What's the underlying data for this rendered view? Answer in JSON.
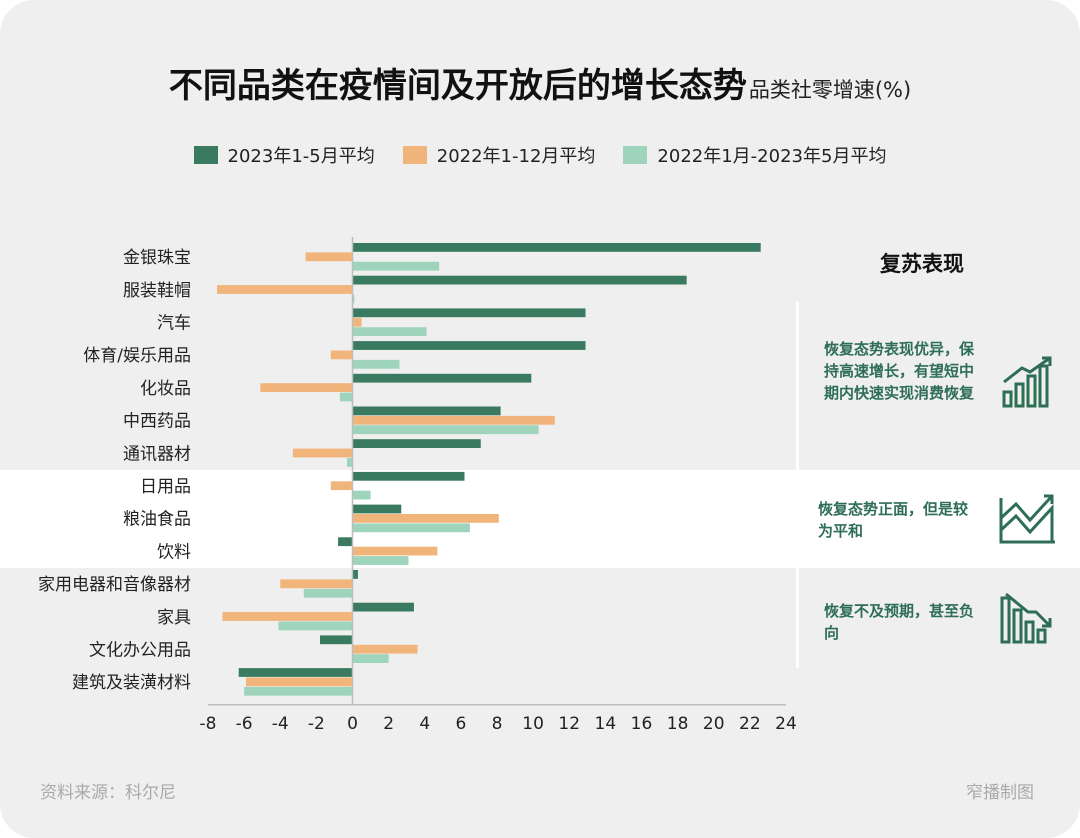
{
  "title": "不同品类在疫情间及开放后的增长态势",
  "subtitle": "品类社零增速(%)",
  "colors": {
    "series1": "#3a7a60",
    "series2": "#f1b57b",
    "series3": "#9ed4bc",
    "accent_text": "#2e6e56"
  },
  "chart_data": {
    "type": "bar",
    "orientation": "horizontal",
    "title": "不同品类在疫情间及开放后的增长态势",
    "subtitle": "品类社零增速(%)",
    "categories": [
      "金银珠宝",
      "服装鞋帽",
      "汽车",
      "体育/娱乐用品",
      "化妆品",
      "中西药品",
      "通讯器材",
      "日用品",
      "粮油食品",
      "饮料",
      "家用电器和音像器材",
      "家具",
      "文化办公用品",
      "建筑及装潢材料"
    ],
    "series": [
      {
        "name": "2023年1-5月平均",
        "values": [
          22.6,
          18.5,
          12.9,
          12.9,
          9.9,
          8.2,
          7.1,
          6.2,
          2.7,
          -0.8,
          0.3,
          3.4,
          -1.8,
          -6.3
        ]
      },
      {
        "name": "2022年1-12月平均",
        "values": [
          -2.6,
          -7.5,
          0.5,
          -1.2,
          -5.1,
          11.2,
          -3.3,
          -1.2,
          8.1,
          4.7,
          -4.0,
          -7.2,
          3.6,
          -5.9
        ]
      },
      {
        "name": "2022年1月-2023年5月平均",
        "values": [
          4.8,
          0.1,
          4.1,
          2.6,
          -0.7,
          10.3,
          -0.3,
          1.0,
          6.5,
          3.1,
          -2.7,
          -4.1,
          2.0,
          -6.0
        ]
      }
    ],
    "xlim": [
      -8,
      24
    ],
    "xticks": [
      -8,
      -6,
      -4,
      -2,
      0,
      2,
      4,
      6,
      8,
      10,
      12,
      14,
      16,
      18,
      20,
      22,
      24
    ],
    "xlabel": "",
    "ylabel": "",
    "legend_position": "top"
  },
  "legend": {
    "items": [
      "2023年1-5月平均",
      "2022年1-12月平均",
      "2022年1月-2023年5月平均"
    ]
  },
  "recovery": {
    "title": "复苏表现",
    "groups": [
      {
        "text": "恢复态势表现优异，保持高速增长，有望短中期内快速实现消费恢复",
        "icon": "bar-chart-up-icon"
      },
      {
        "text": "恢复态势正面，但是较为平和",
        "icon": "line-chart-up-icon"
      },
      {
        "text": "恢复不及预期，甚至负向",
        "icon": "bar-chart-down-icon"
      }
    ]
  },
  "footer": {
    "source": "资料来源：科尔尼",
    "credit": "窄播制图"
  }
}
